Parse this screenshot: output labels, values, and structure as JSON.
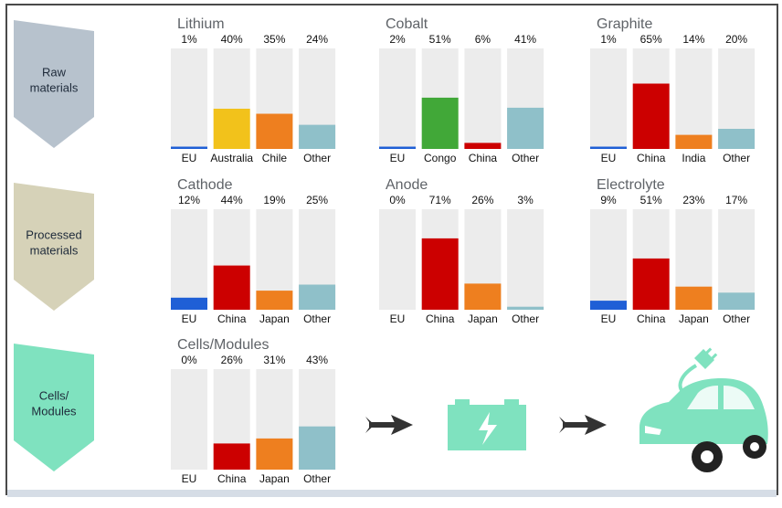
{
  "stages": [
    {
      "label_lines": [
        "Raw",
        "materials"
      ],
      "color": "#b7c2cd"
    },
    {
      "label_lines": [
        "Processed",
        "materials"
      ],
      "color": "#d6d2b8"
    },
    {
      "label_lines": [
        "Cells/",
        "Modules"
      ],
      "color": "#7fe2bf"
    }
  ],
  "colors": {
    "EU": "#1f5fd6",
    "China": "#cc0000",
    "Australia": "#f2c21b",
    "Chile": "#ee7f1f",
    "Japan": "#ee7f1f",
    "India": "#ee7f1f",
    "Congo": "#41a838",
    "Other": "#8fc0c9",
    "bar_background": "#ececec",
    "graphic": "#7fe2bf",
    "arrow": "#333333"
  },
  "chart_data": [
    {
      "type": "bar",
      "title": "Lithium",
      "categories": [
        "EU",
        "Australia",
        "Chile",
        "Other"
      ],
      "values": [
        1,
        40,
        35,
        24
      ],
      "value_labels": [
        "1%",
        "40%",
        "35%",
        "24%"
      ],
      "ylim": [
        0,
        100
      ]
    },
    {
      "type": "bar",
      "title": "Cobalt",
      "categories": [
        "EU",
        "Congo",
        "China",
        "Other"
      ],
      "values": [
        2,
        51,
        6,
        41
      ],
      "value_labels": [
        "2%",
        "51%",
        "6%",
        "41%"
      ],
      "ylim": [
        0,
        100
      ]
    },
    {
      "type": "bar",
      "title": "Graphite",
      "categories": [
        "EU",
        "China",
        "India",
        "Other"
      ],
      "values": [
        1,
        65,
        14,
        20
      ],
      "value_labels": [
        "1%",
        "65%",
        "14%",
        "20%"
      ],
      "ylim": [
        0,
        100
      ]
    },
    {
      "type": "bar",
      "title": "Cathode",
      "categories": [
        "EU",
        "China",
        "Japan",
        "Other"
      ],
      "values": [
        12,
        44,
        19,
        25
      ],
      "value_labels": [
        "12%",
        "44%",
        "19%",
        "25%"
      ],
      "ylim": [
        0,
        100
      ]
    },
    {
      "type": "bar",
      "title": "Anode",
      "categories": [
        "EU",
        "China",
        "Japan",
        "Other"
      ],
      "values": [
        0,
        71,
        26,
        3
      ],
      "value_labels": [
        "0%",
        "71%",
        "26%",
        "3%"
      ],
      "ylim": [
        0,
        100
      ]
    },
    {
      "type": "bar",
      "title": "Electrolyte",
      "categories": [
        "EU",
        "China",
        "Japan",
        "Other"
      ],
      "values": [
        9,
        51,
        23,
        17
      ],
      "value_labels": [
        "9%",
        "51%",
        "23%",
        "17%"
      ],
      "ylim": [
        0,
        100
      ]
    },
    {
      "type": "bar",
      "title": "Cells/Modules",
      "categories": [
        "EU",
        "China",
        "Japan",
        "Other"
      ],
      "values": [
        0,
        26,
        31,
        43
      ],
      "value_labels": [
        "0%",
        "26%",
        "31%",
        "43%"
      ],
      "ylim": [
        0,
        100
      ]
    }
  ],
  "graphics": {
    "arrow_icon": "arrow-right-icon",
    "battery_icon": "battery-icon",
    "car_icon": "electric-car-icon"
  }
}
